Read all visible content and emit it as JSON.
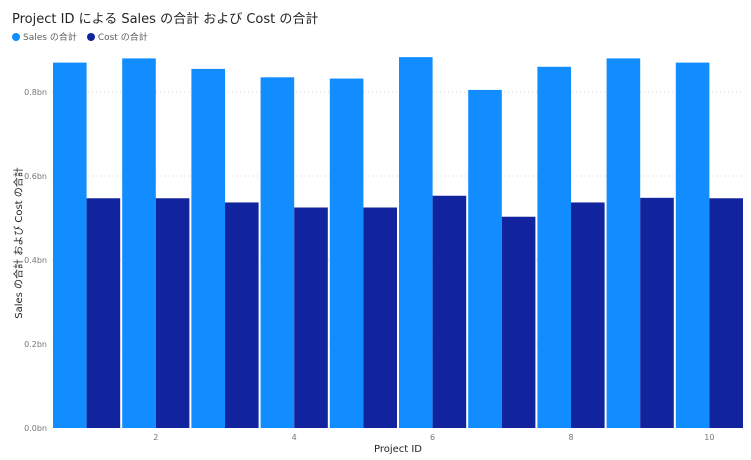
{
  "chart_data": {
    "type": "bar",
    "title": "Project ID による Sales の合計 および Cost の合計",
    "xlabel": "Project ID",
    "ylabel": "Sales の合計 および Cost の合計",
    "categories": [
      1,
      2,
      3,
      4,
      5,
      6,
      7,
      8,
      9,
      10
    ],
    "x_tick_labels": [
      "2",
      "4",
      "6",
      "8",
      "10"
    ],
    "x_tick_values": [
      2,
      4,
      6,
      8,
      10
    ],
    "y_tick_labels": [
      "0.0bn",
      "0.2bn",
      "0.4bn",
      "0.6bn",
      "0.8bn"
    ],
    "y_tick_values": [
      0,
      0.2,
      0.4,
      0.6,
      0.8
    ],
    "ylim": [
      0,
      0.9
    ],
    "grid": true,
    "legend_position": "top-left",
    "series": [
      {
        "name": "Sales の合計",
        "color": "#118DFF",
        "values": [
          0.87,
          0.88,
          0.855,
          0.835,
          0.832,
          0.883,
          0.805,
          0.86,
          0.88,
          0.87
        ]
      },
      {
        "name": "Cost の合計",
        "color": "#12239E",
        "values": [
          0.547,
          0.547,
          0.537,
          0.525,
          0.525,
          0.553,
          0.503,
          0.537,
          0.548,
          0.547
        ]
      }
    ]
  }
}
